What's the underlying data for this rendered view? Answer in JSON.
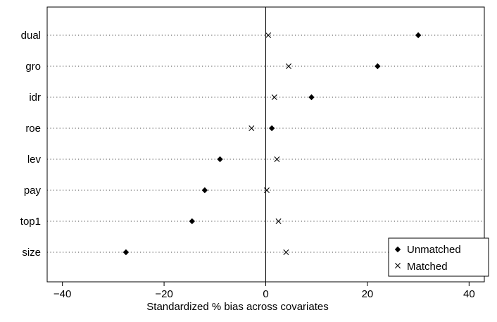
{
  "chart_data": {
    "type": "scatter",
    "title": "",
    "xlabel": "Standardized % bias across covariates",
    "ylabel": "",
    "xlim": [
      -43,
      43
    ],
    "xticks": [
      -40,
      -20,
      0,
      20,
      40
    ],
    "grid": "dotted horizontal lines per category",
    "reference_line": 0,
    "legend_position": "bottom-right",
    "categories": [
      "dual",
      "gro",
      "idr",
      "roe",
      "lev",
      "pay",
      "top1",
      "size"
    ],
    "series": [
      {
        "name": "Unmatched",
        "marker": "diamond",
        "values": [
          30,
          22,
          9,
          1.2,
          -9,
          -12,
          -14.5,
          -27.5
        ]
      },
      {
        "name": "Matched",
        "marker": "x",
        "values": [
          0.5,
          4.5,
          1.7,
          -2.8,
          2.2,
          0.2,
          2.5,
          4
        ]
      }
    ]
  }
}
